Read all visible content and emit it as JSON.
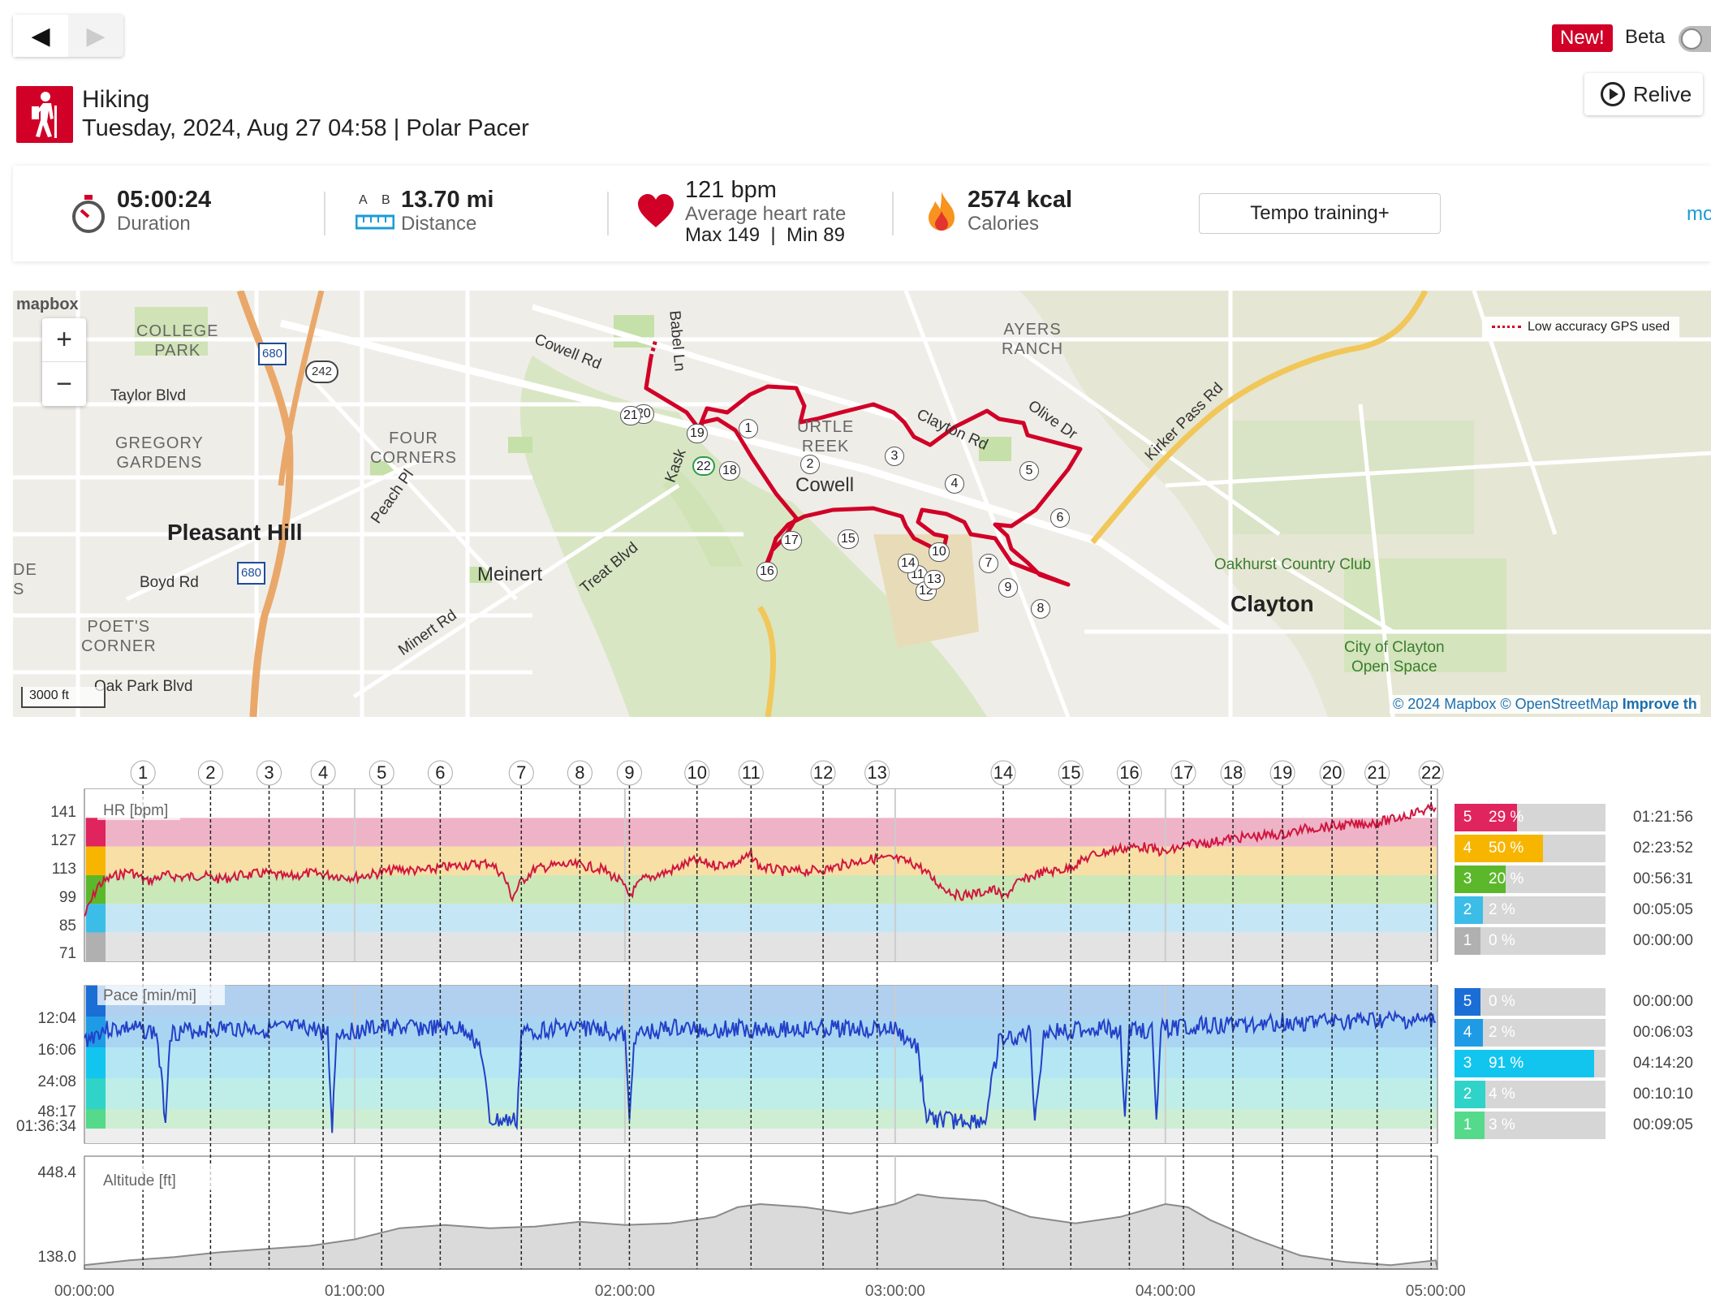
{
  "nav": {
    "back_label": "◀",
    "forward_label": "▶",
    "new_badge": "New!",
    "beta_label": "Beta"
  },
  "header": {
    "sport": "Hiking",
    "subtitle": "Tuesday, 2024, Aug 27 04:58 | Polar Pacer",
    "relive_label": "Relive"
  },
  "summary": {
    "duration_value": "05:00:24",
    "duration_label": "Duration",
    "distance_value": "13.70 mi",
    "distance_label": "Distance",
    "distance_a": "A",
    "distance_b": "B",
    "hr_value": "121 bpm",
    "hr_label": "Average heart rate",
    "hr_maxmin": "Max 149  |  Min 89",
    "cal_value": "2574 kcal",
    "cal_label": "Calories",
    "tempo_label": "Tempo training+",
    "more_label": "mo"
  },
  "map": {
    "logo": "mapbox",
    "zoom_in": "+",
    "zoom_out": "−",
    "legend": "Low accuracy GPS used",
    "scale": "3000 ft",
    "attribution_1": "© 2024 Mapbox",
    "attribution_2": "© OpenStreetMap",
    "attribution_3": "Improve th",
    "labels": {
      "college_park": "COLLEGE\nPARK",
      "taylor": "Taylor Blvd",
      "gregory": "GREGORY\nGARDENS",
      "pleasant_hill": "Pleasant Hill",
      "boyd": "Boyd Rd",
      "poets": "POET'S\nCORNER",
      "oakpark": "Oak Park Blvd",
      "four_corners": "FOUR\nCORNERS",
      "peach": "Peach Pl",
      "meinert": "Meinert",
      "minert": "Minert Rd",
      "treat": "Treat Blvd",
      "cowell_rd": "Cowell Rd",
      "babel": "Babel Ln",
      "kask": "Kask",
      "turtle_creek": "URTLE\nREEK",
      "cowell": "Cowell",
      "clayton_rd": "Clayton Rd",
      "ayers": "AYERS\nRANCH",
      "olive": "Olive Dr",
      "kirker": "Kirker Pass Rd",
      "oakhurst": "Oakhurst Country Club",
      "clayton": "Clayton",
      "clayton_os": "City of Clayton\nOpen Space",
      "de": "DE\nS",
      "i680a": "680",
      "i680b": "680",
      "r242": "242"
    },
    "laps": [
      "1",
      "2",
      "3",
      "4",
      "5",
      "6",
      "7",
      "8",
      "9",
      "10",
      "11",
      "12",
      "13",
      "14",
      "15",
      "16",
      "17",
      "18",
      "19",
      "20",
      "21",
      "22"
    ]
  },
  "chart_data": {
    "type": "line",
    "x_unit": "elapsed time",
    "x_ticks": [
      "00:00:00",
      "01:00:00",
      "02:00:00",
      "03:00:00",
      "04:00:00",
      "05:00:00"
    ],
    "duration_minutes": 300.4,
    "lap_markers": [
      {
        "label": "1",
        "min": 13
      },
      {
        "label": "2",
        "min": 28
      },
      {
        "label": "3",
        "min": 41
      },
      {
        "label": "4",
        "min": 53
      },
      {
        "label": "5",
        "min": 66
      },
      {
        "label": "6",
        "min": 79
      },
      {
        "label": "7",
        "min": 97
      },
      {
        "label": "8",
        "min": 110
      },
      {
        "label": "9",
        "min": 121
      },
      {
        "label": "10",
        "min": 136
      },
      {
        "label": "11",
        "min": 148
      },
      {
        "label": "12",
        "min": 164
      },
      {
        "label": "13",
        "min": 176
      },
      {
        "label": "14",
        "min": 204
      },
      {
        "label": "15",
        "min": 219
      },
      {
        "label": "16",
        "min": 232
      },
      {
        "label": "17",
        "min": 244
      },
      {
        "label": "18",
        "min": 255
      },
      {
        "label": "19",
        "min": 266
      },
      {
        "label": "20",
        "min": 277
      },
      {
        "label": "21",
        "min": 287
      },
      {
        "label": "22",
        "min": 299
      }
    ],
    "panels": [
      {
        "title": "HR [bpm]",
        "y_ticks": [
          "141",
          "127",
          "113",
          "99",
          "85",
          "71"
        ],
        "ylim": [
          71,
          155
        ],
        "color": "#d0163f",
        "series": [
          {
            "t": 0,
            "v": 93
          },
          {
            "t": 3,
            "v": 108
          },
          {
            "t": 6,
            "v": 112
          },
          {
            "t": 10,
            "v": 115
          },
          {
            "t": 14,
            "v": 110
          },
          {
            "t": 18,
            "v": 113
          },
          {
            "t": 22,
            "v": 112
          },
          {
            "t": 26,
            "v": 113
          },
          {
            "t": 30,
            "v": 111
          },
          {
            "t": 35,
            "v": 113
          },
          {
            "t": 40,
            "v": 114
          },
          {
            "t": 45,
            "v": 112
          },
          {
            "t": 50,
            "v": 114
          },
          {
            "t": 55,
            "v": 113
          },
          {
            "t": 60,
            "v": 112
          },
          {
            "t": 65,
            "v": 114
          },
          {
            "t": 70,
            "v": 116
          },
          {
            "t": 75,
            "v": 115
          },
          {
            "t": 80,
            "v": 117
          },
          {
            "t": 85,
            "v": 118
          },
          {
            "t": 90,
            "v": 119
          },
          {
            "t": 93,
            "v": 113
          },
          {
            "t": 95,
            "v": 102
          },
          {
            "t": 97,
            "v": 110
          },
          {
            "t": 100,
            "v": 116
          },
          {
            "t": 105,
            "v": 118
          },
          {
            "t": 110,
            "v": 118
          },
          {
            "t": 115,
            "v": 116
          },
          {
            "t": 119,
            "v": 110
          },
          {
            "t": 121,
            "v": 103
          },
          {
            "t": 124,
            "v": 111
          },
          {
            "t": 130,
            "v": 115
          },
          {
            "t": 135,
            "v": 120
          },
          {
            "t": 140,
            "v": 118
          },
          {
            "t": 145,
            "v": 119
          },
          {
            "t": 148,
            "v": 123
          },
          {
            "t": 150,
            "v": 117
          },
          {
            "t": 155,
            "v": 115
          },
          {
            "t": 160,
            "v": 115
          },
          {
            "t": 165,
            "v": 116
          },
          {
            "t": 170,
            "v": 119
          },
          {
            "t": 175,
            "v": 121
          },
          {
            "t": 180,
            "v": 121
          },
          {
            "t": 185,
            "v": 118
          },
          {
            "t": 190,
            "v": 108
          },
          {
            "t": 194,
            "v": 103
          },
          {
            "t": 198,
            "v": 104
          },
          {
            "t": 202,
            "v": 106
          },
          {
            "t": 204,
            "v": 102
          },
          {
            "t": 207,
            "v": 109
          },
          {
            "t": 212,
            "v": 114
          },
          {
            "t": 218,
            "v": 116
          },
          {
            "t": 224,
            "v": 123
          },
          {
            "t": 230,
            "v": 126
          },
          {
            "t": 235,
            "v": 127
          },
          {
            "t": 240,
            "v": 124
          },
          {
            "t": 245,
            "v": 128
          },
          {
            "t": 250,
            "v": 129
          },
          {
            "t": 255,
            "v": 131
          },
          {
            "t": 260,
            "v": 132
          },
          {
            "t": 266,
            "v": 133
          },
          {
            "t": 272,
            "v": 136
          },
          {
            "t": 278,
            "v": 137
          },
          {
            "t": 284,
            "v": 138
          },
          {
            "t": 290,
            "v": 140
          },
          {
            "t": 296,
            "v": 144
          },
          {
            "t": 300,
            "v": 146
          }
        ]
      },
      {
        "title": "Pace [min/mi]",
        "y_ticks": [
          "12:04",
          "16:06",
          "24:08",
          "48:17",
          "01:36:34"
        ],
        "color": "#2340c8",
        "series": [
          {
            "t": 0,
            "v": 0.35
          },
          {
            "t": 4,
            "v": 0.28
          },
          {
            "t": 10,
            "v": 0.27
          },
          {
            "t": 16,
            "v": 0.3
          },
          {
            "t": 18,
            "v": 0.85
          },
          {
            "t": 19,
            "v": 0.3
          },
          {
            "t": 26,
            "v": 0.28
          },
          {
            "t": 33,
            "v": 0.27
          },
          {
            "t": 40,
            "v": 0.28
          },
          {
            "t": 50,
            "v": 0.27
          },
          {
            "t": 54,
            "v": 0.3
          },
          {
            "t": 55,
            "v": 0.9
          },
          {
            "t": 56,
            "v": 0.3
          },
          {
            "t": 65,
            "v": 0.27
          },
          {
            "t": 75,
            "v": 0.27
          },
          {
            "t": 85,
            "v": 0.28
          },
          {
            "t": 88,
            "v": 0.4
          },
          {
            "t": 90,
            "v": 0.86
          },
          {
            "t": 96,
            "v": 0.86
          },
          {
            "t": 97,
            "v": 0.3
          },
          {
            "t": 105,
            "v": 0.27
          },
          {
            "t": 115,
            "v": 0.27
          },
          {
            "t": 120,
            "v": 0.32
          },
          {
            "t": 121,
            "v": 0.88
          },
          {
            "t": 122,
            "v": 0.32
          },
          {
            "t": 130,
            "v": 0.27
          },
          {
            "t": 140,
            "v": 0.28
          },
          {
            "t": 150,
            "v": 0.27
          },
          {
            "t": 160,
            "v": 0.28
          },
          {
            "t": 170,
            "v": 0.27
          },
          {
            "t": 180,
            "v": 0.28
          },
          {
            "t": 185,
            "v": 0.4
          },
          {
            "t": 187,
            "v": 0.85
          },
          {
            "t": 200,
            "v": 0.86
          },
          {
            "t": 203,
            "v": 0.36
          },
          {
            "t": 210,
            "v": 0.3
          },
          {
            "t": 211,
            "v": 0.85
          },
          {
            "t": 213,
            "v": 0.3
          },
          {
            "t": 225,
            "v": 0.27
          },
          {
            "t": 230,
            "v": 0.28
          },
          {
            "t": 231,
            "v": 0.88
          },
          {
            "t": 232,
            "v": 0.28
          },
          {
            "t": 237,
            "v": 0.28
          },
          {
            "t": 238,
            "v": 0.88
          },
          {
            "t": 239,
            "v": 0.27
          },
          {
            "t": 250,
            "v": 0.25
          },
          {
            "t": 260,
            "v": 0.24
          },
          {
            "t": 270,
            "v": 0.23
          },
          {
            "t": 280,
            "v": 0.23
          },
          {
            "t": 290,
            "v": 0.22
          },
          {
            "t": 300,
            "v": 0.23
          }
        ]
      },
      {
        "title": "Altitude [ft]",
        "y_ticks": [
          "448.4",
          "138.0"
        ],
        "ylim": [
          138.0,
          448.4
        ],
        "color": "#999999",
        "series": [
          {
            "t": 0,
            "v": 150
          },
          {
            "t": 10,
            "v": 165
          },
          {
            "t": 20,
            "v": 175
          },
          {
            "t": 30,
            "v": 190
          },
          {
            "t": 40,
            "v": 200
          },
          {
            "t": 50,
            "v": 210
          },
          {
            "t": 60,
            "v": 230
          },
          {
            "t": 70,
            "v": 265
          },
          {
            "t": 80,
            "v": 275
          },
          {
            "t": 90,
            "v": 265
          },
          {
            "t": 100,
            "v": 270
          },
          {
            "t": 110,
            "v": 285
          },
          {
            "t": 120,
            "v": 275
          },
          {
            "t": 130,
            "v": 280
          },
          {
            "t": 140,
            "v": 300
          },
          {
            "t": 145,
            "v": 330
          },
          {
            "t": 150,
            "v": 340
          },
          {
            "t": 160,
            "v": 330
          },
          {
            "t": 170,
            "v": 310
          },
          {
            "t": 180,
            "v": 340
          },
          {
            "t": 185,
            "v": 370
          },
          {
            "t": 190,
            "v": 360
          },
          {
            "t": 200,
            "v": 350
          },
          {
            "t": 210,
            "v": 300
          },
          {
            "t": 220,
            "v": 280
          },
          {
            "t": 230,
            "v": 300
          },
          {
            "t": 240,
            "v": 340
          },
          {
            "t": 245,
            "v": 330
          },
          {
            "t": 250,
            "v": 290
          },
          {
            "t": 260,
            "v": 230
          },
          {
            "t": 270,
            "v": 180
          },
          {
            "t": 280,
            "v": 160
          },
          {
            "t": 290,
            "v": 150
          },
          {
            "t": 300,
            "v": 165
          }
        ]
      }
    ],
    "hr_zones": [
      {
        "zone": "5",
        "pct": "29 %",
        "frac": 0.29,
        "time": "01:21:56",
        "color": "#e0245e"
      },
      {
        "zone": "4",
        "pct": "50 %",
        "frac": 0.5,
        "time": "02:23:52",
        "color": "#f7b500"
      },
      {
        "zone": "3",
        "pct": "20 %",
        "frac": 0.2,
        "time": "00:56:31",
        "color": "#5cb82b"
      },
      {
        "zone": "2",
        "pct": "2 %",
        "frac": 0.02,
        "time": "00:05:05",
        "color": "#3bbde8"
      },
      {
        "zone": "1",
        "pct": "0 %",
        "frac": 0.0,
        "time": "00:00:00",
        "color": "#b0b0b0"
      }
    ],
    "pace_zones": [
      {
        "zone": "5",
        "pct": "0 %",
        "frac": 0.0,
        "time": "00:00:00",
        "color": "#1b6ed6"
      },
      {
        "zone": "4",
        "pct": "2 %",
        "frac": 0.02,
        "time": "00:06:03",
        "color": "#1f9be6"
      },
      {
        "zone": "3",
        "pct": "91 %",
        "frac": 0.91,
        "time": "04:14:20",
        "color": "#12c5ef"
      },
      {
        "zone": "2",
        "pct": "4 %",
        "frac": 0.04,
        "time": "00:10:10",
        "color": "#2fd3c8"
      },
      {
        "zone": "1",
        "pct": "3 %",
        "frac": 0.03,
        "time": "00:09:05",
        "color": "#55d98a"
      }
    ]
  }
}
